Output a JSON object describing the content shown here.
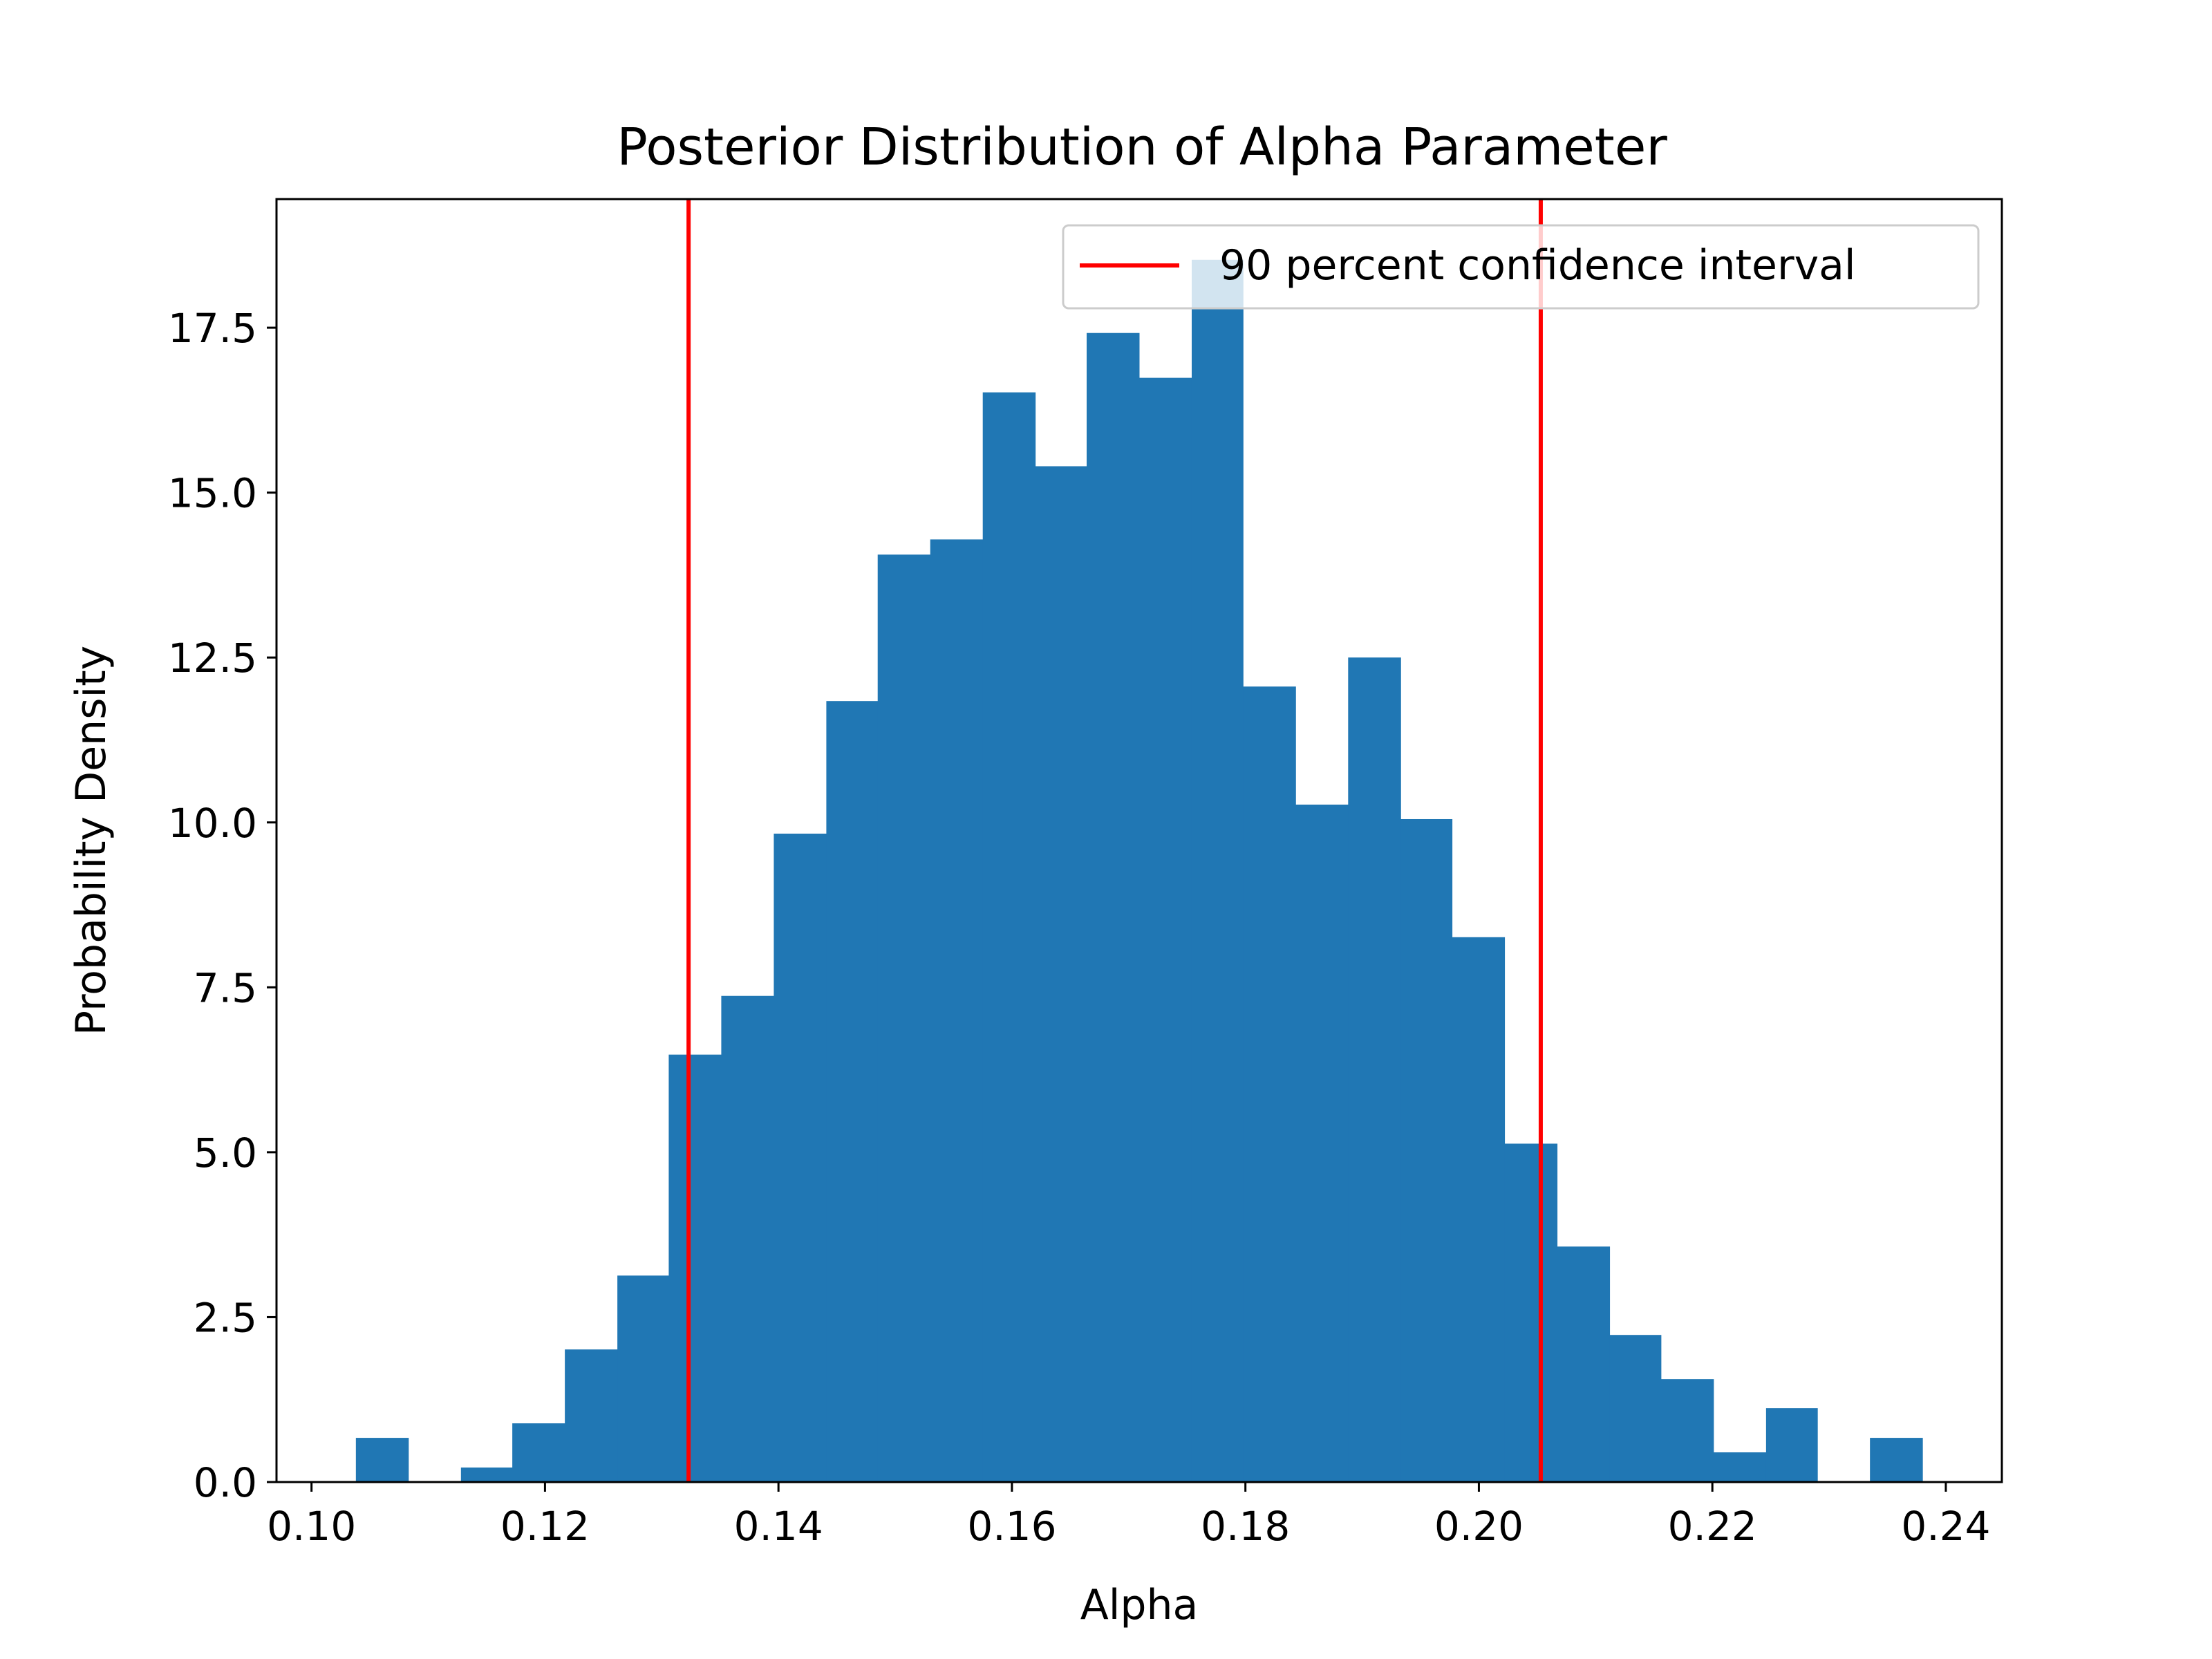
{
  "chart_data": {
    "type": "bar",
    "title": "Posterior Distribution of Alpha Parameter",
    "xlabel": "Alpha",
    "ylabel": "Probability Density",
    "xlim": [
      0.097,
      0.2448
    ],
    "ylim": [
      0,
      19.45
    ],
    "xticks": [
      0.1,
      0.12,
      0.14,
      0.16,
      0.18,
      0.2,
      0.22,
      0.24
    ],
    "xtick_labels": [
      "0.10",
      "0.12",
      "0.14",
      "0.16",
      "0.18",
      "0.20",
      "0.22",
      "0.24"
    ],
    "yticks": [
      0,
      2.5,
      5,
      7.5,
      10,
      12.5,
      15,
      17.5
    ],
    "ytick_labels": [
      "0.0",
      "2.5",
      "5.0",
      "7.5",
      "10.0",
      "12.5",
      "15.0",
      "17.5"
    ],
    "grid": false,
    "legend_position": "top-right",
    "bar_color": "#2077b4",
    "bins": [
      {
        "x0": 0.1038,
        "x1": 0.1083,
        "value": 0.67
      },
      {
        "x0": 0.1083,
        "x1": 0.1128,
        "value": 0
      },
      {
        "x0": 0.1128,
        "x1": 0.1172,
        "value": 0.22
      },
      {
        "x0": 0.1172,
        "x1": 0.1217,
        "value": 0.89
      },
      {
        "x0": 0.1217,
        "x1": 0.1262,
        "value": 2.01
      },
      {
        "x0": 0.1262,
        "x1": 0.1306,
        "value": 3.13
      },
      {
        "x0": 0.1306,
        "x1": 0.1351,
        "value": 6.48
      },
      {
        "x0": 0.1351,
        "x1": 0.1396,
        "value": 7.37
      },
      {
        "x0": 0.1396,
        "x1": 0.1441,
        "value": 9.83
      },
      {
        "x0": 0.1441,
        "x1": 0.1485,
        "value": 11.84
      },
      {
        "x0": 0.1485,
        "x1": 0.153,
        "value": 14.06
      },
      {
        "x0": 0.153,
        "x1": 0.1575,
        "value": 14.29
      },
      {
        "x0": 0.1575,
        "x1": 0.162,
        "value": 16.52
      },
      {
        "x0": 0.162,
        "x1": 0.1664,
        "value": 15.4
      },
      {
        "x0": 0.1664,
        "x1": 0.1709,
        "value": 17.42
      },
      {
        "x0": 0.1709,
        "x1": 0.1754,
        "value": 16.74
      },
      {
        "x0": 0.1754,
        "x1": 0.1798,
        "value": 18.53
      },
      {
        "x0": 0.1798,
        "x1": 0.1843,
        "value": 12.06
      },
      {
        "x0": 0.1843,
        "x1": 0.1888,
        "value": 10.27
      },
      {
        "x0": 0.1888,
        "x1": 0.1933,
        "value": 12.5
      },
      {
        "x0": 0.1933,
        "x1": 0.1977,
        "value": 10.05
      },
      {
        "x0": 0.1977,
        "x1": 0.2022,
        "value": 8.26
      },
      {
        "x0": 0.2022,
        "x1": 0.2067,
        "value": 5.13
      },
      {
        "x0": 0.2067,
        "x1": 0.2112,
        "value": 3.57
      },
      {
        "x0": 0.2112,
        "x1": 0.2156,
        "value": 2.23
      },
      {
        "x0": 0.2156,
        "x1": 0.2201,
        "value": 1.56
      },
      {
        "x0": 0.2201,
        "x1": 0.2246,
        "value": 0.45
      },
      {
        "x0": 0.2246,
        "x1": 0.229,
        "value": 1.12
      },
      {
        "x0": 0.229,
        "x1": 0.2335,
        "value": 0
      },
      {
        "x0": 0.2335,
        "x1": 0.238,
        "value": 0.67
      }
    ],
    "vlines": [
      {
        "x": 0.1323,
        "color": "#ff0000"
      },
      {
        "x": 0.2053,
        "color": "#ff0000"
      }
    ],
    "legend": [
      {
        "label": "90 percent confidence interval",
        "color": "#ff0000"
      }
    ]
  }
}
